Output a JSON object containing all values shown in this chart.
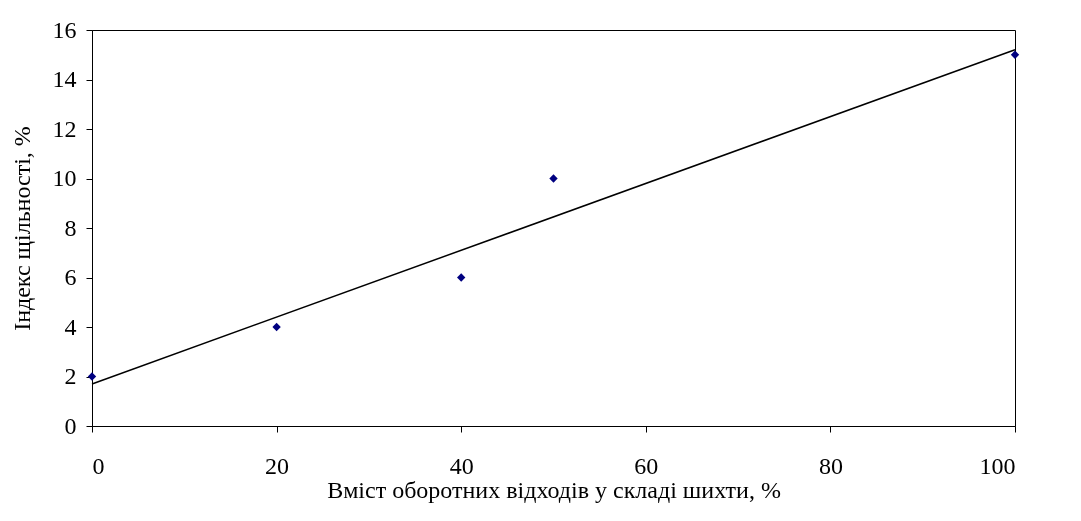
{
  "chart_data": {
    "type": "scatter",
    "xlabel": "Вміст оборотних відходів у складі шихти, %",
    "ylabel": "Індекс щільності, %",
    "x": [
      0,
      20,
      40,
      50,
      100
    ],
    "series": [
      {
        "color": "#000080",
        "marker": "diamond",
        "values": [
          2,
          4,
          6,
          10,
          15
        ]
      },
      {
        "type": "line",
        "color": "#000000",
        "x": [
          0,
          100
        ],
        "values": [
          1.7,
          15.2
        ]
      }
    ],
    "xlim": [
      0,
      100
    ],
    "xticks": [
      0,
      20,
      40,
      60,
      80,
      100
    ],
    "ylim": [
      0,
      16
    ],
    "yticks": [
      0,
      2,
      4,
      6,
      8,
      10,
      12,
      14,
      16
    ]
  }
}
